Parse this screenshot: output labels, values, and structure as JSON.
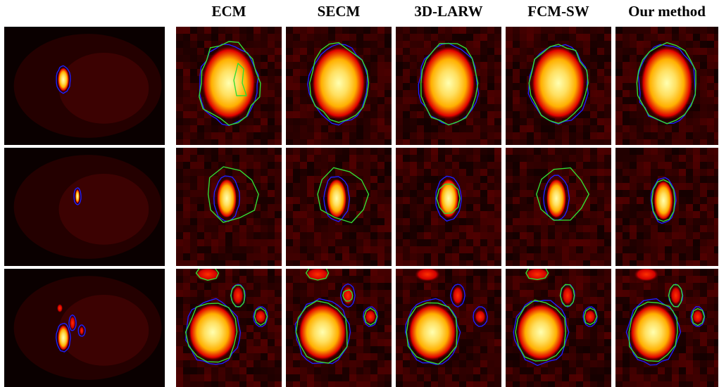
{
  "figure": {
    "column_titles": [
      "ECM",
      "SECM",
      "3D-LARW",
      "FCM-SW",
      "Our method"
    ],
    "row_labels": [],
    "colors": {
      "ground_truth_contour": "#1f1fff",
      "segmentation_contour": "#33dd33",
      "background": "#120000",
      "hot_core": "#ffffb0",
      "hot_mid": "#ffb000",
      "hot_edge": "#e00000"
    },
    "colormap": "hot"
  }
}
